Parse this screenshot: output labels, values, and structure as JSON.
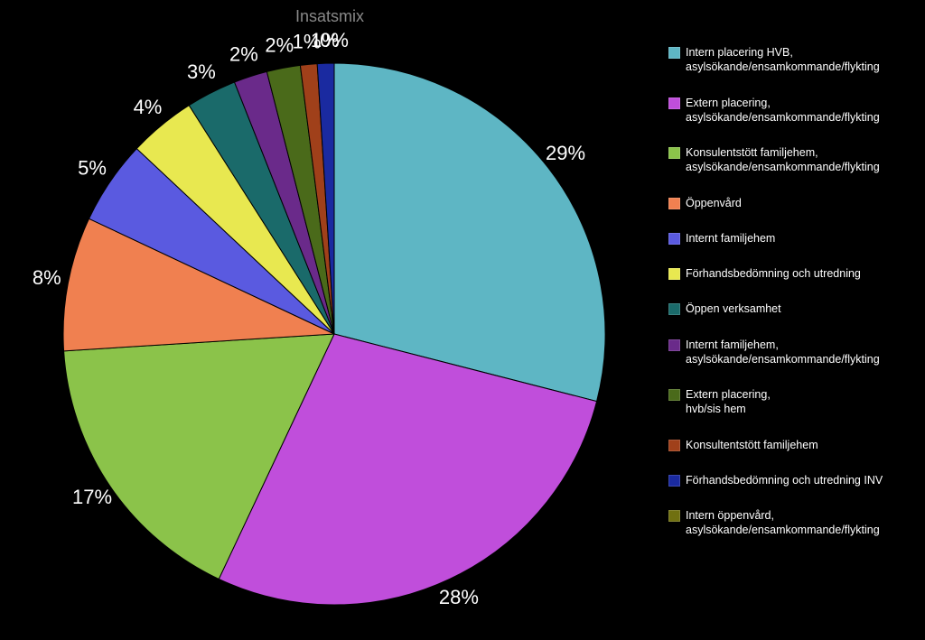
{
  "chart": {
    "type": "pie",
    "title": "Insatsmix",
    "title_color": "#888888",
    "title_fontsize": 18,
    "background_color": "#000000",
    "label_color": "#ffffff",
    "label_fontsize": 22,
    "legend_text_color": "#ffffff",
    "legend_fontsize": 12.5,
    "start_angle_deg": -90,
    "direction": "clockwise",
    "slices": [
      {
        "label": "Intern placering HVB, asylsökande/ensamkommande/flykting",
        "value": 29,
        "display": "29%",
        "color": "#5eb6c4"
      },
      {
        "label": "Extern placering, asylsökande/ensamkommande/flykting",
        "value": 28,
        "display": "28%",
        "color": "#c04edb"
      },
      {
        "label": "Konsulentstött familjehem, asylsökande/ensamkommande/flykting",
        "value": 17,
        "display": "17%",
        "color": "#8bc34a"
      },
      {
        "label": "Öppenvård",
        "value": 8,
        "display": "8%",
        "color": "#f08050"
      },
      {
        "label": "Internt familjehem",
        "value": 5,
        "display": "5%",
        "color": "#5a5ae0"
      },
      {
        "label": "Förhandsbedömning och utredning",
        "value": 4,
        "display": "4%",
        "color": "#e8e850"
      },
      {
        "label": "Öppen verksamhet",
        "value": 3,
        "display": "3%",
        "color": "#1a6a6a"
      },
      {
        "label": "Internt familjehem, asylsökande/ensamkommande/flykting",
        "value": 2,
        "display": "2%",
        "color": "#6a2a8a"
      },
      {
        "label": "Extern placering, hvb/sis hem",
        "value": 2,
        "display": "2%",
        "color": "#4a6a1a"
      },
      {
        "label": "Konsultentstött familjehem",
        "value": 1,
        "display": "1%",
        "color": "#a0401a"
      },
      {
        "label": "Förhandsbedömning och utredning INV",
        "value": 1,
        "display": "1%",
        "color": "#1a2aa0"
      },
      {
        "label": "Intern öppenvård, asylsökande/ensamkommande/flykting",
        "value": 0,
        "display": "0%",
        "color": "#707010"
      }
    ]
  }
}
